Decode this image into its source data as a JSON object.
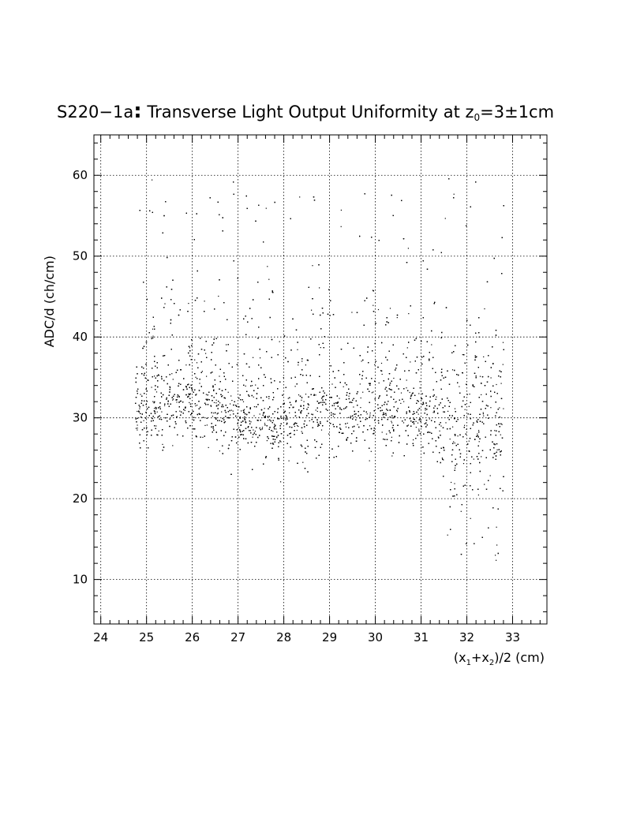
{
  "chart_data": {
    "type": "scatter",
    "title": {
      "main": "S220−1a",
      "colon": ":",
      "rest": " Transverse Light Output Uniformity at z",
      "sub": "0",
      "tail": "=3±1cm"
    },
    "xlabel": {
      "p1": "(x",
      "s1": "1",
      "p2": "+x",
      "s2": "2",
      "p3": ")/2 (cm)"
    },
    "ylabel": "ADC/d (ch/cm)",
    "xlim": [
      23.85,
      33.75
    ],
    "ylim": [
      4.5,
      65.0
    ],
    "x_ticks": [
      24,
      25,
      26,
      27,
      28,
      29,
      30,
      31,
      32,
      33
    ],
    "x_tick_labels": [
      "24",
      "25",
      "26",
      "27",
      "28",
      "29",
      "30",
      "31",
      "32",
      "33"
    ],
    "y_ticks": [
      10,
      20,
      30,
      40,
      50,
      60
    ],
    "y_tick_labels": [
      "10",
      "20",
      "30",
      "40",
      "50",
      "60"
    ],
    "grid": true,
    "grid_style": "dotted",
    "marker_color": "#000000",
    "x_range_of_points": [
      24.75,
      32.8
    ],
    "y_profile": [
      {
        "x": 25.0,
        "mean": 31.5
      },
      {
        "x": 26.0,
        "mean": 32.0
      },
      {
        "x": 27.0,
        "mean": 30.5
      },
      {
        "x": 28.0,
        "mean": 29.5
      },
      {
        "x": 29.0,
        "mean": 30.5
      },
      {
        "x": 30.0,
        "mean": 31.0
      },
      {
        "x": 31.0,
        "mean": 30.5
      },
      {
        "x": 32.0,
        "mean": 28.5
      }
    ]
  }
}
